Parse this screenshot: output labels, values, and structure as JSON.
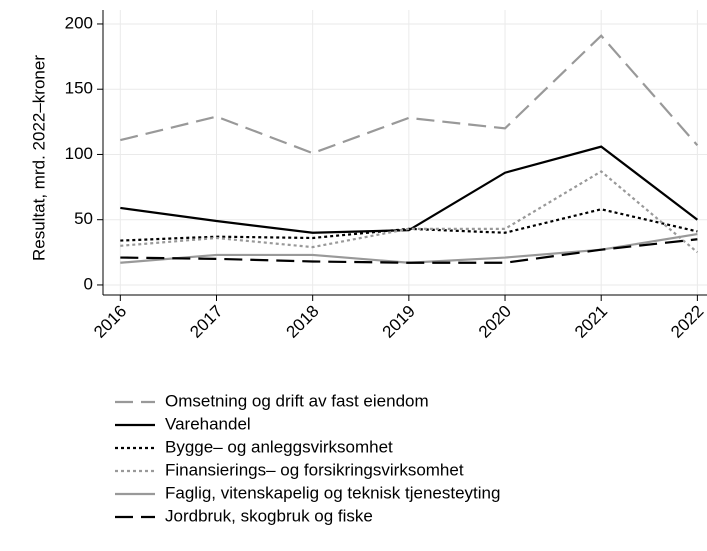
{
  "chart_data": {
    "type": "line",
    "y_label": "Resultat, mrd. 2022–kroner",
    "x": [
      2016,
      2017,
      2018,
      2019,
      2020,
      2021,
      2022
    ],
    "xlim": [
      2015.82,
      2022.1
    ],
    "xticks": [
      2016,
      2017,
      2018,
      2019,
      2020,
      2021,
      2022
    ],
    "ylim": [
      -7.7,
      210.7
    ],
    "yticks": [
      0,
      50,
      100,
      150,
      200
    ],
    "grid": true,
    "legend": "bottom",
    "series": [
      {
        "name": "Omsetning og drift av fast eiendom",
        "color": "#999999",
        "dash": "18 8",
        "values": [
          111,
          129,
          101,
          128,
          120,
          191,
          107
        ]
      },
      {
        "name": "Varehandel",
        "color": "#000000",
        "dash": "none",
        "values": [
          59,
          49,
          40,
          42,
          86,
          106,
          50
        ]
      },
      {
        "name": "Bygge– og anleggsvirksomhet",
        "color": "#000000",
        "dash": "3 3",
        "values": [
          34,
          37,
          36,
          43,
          40,
          58,
          41
        ]
      },
      {
        "name": "Finansierings– og forsikringsvirksomhet",
        "color": "#999999",
        "dash": "3 3",
        "values": [
          30,
          36,
          29,
          43,
          43,
          87,
          25
        ]
      },
      {
        "name": "Faglig, vitenskapelig og teknisk tjenesteyting",
        "color": "#999999",
        "dash": "none",
        "values": [
          17,
          23,
          23,
          17,
          21,
          27,
          39
        ]
      },
      {
        "name": "Jordbruk, skogbruk og fiske",
        "color": "#000000",
        "dash": "18 8",
        "values": [
          21,
          20,
          18,
          17,
          17,
          27,
          35
        ]
      }
    ]
  }
}
